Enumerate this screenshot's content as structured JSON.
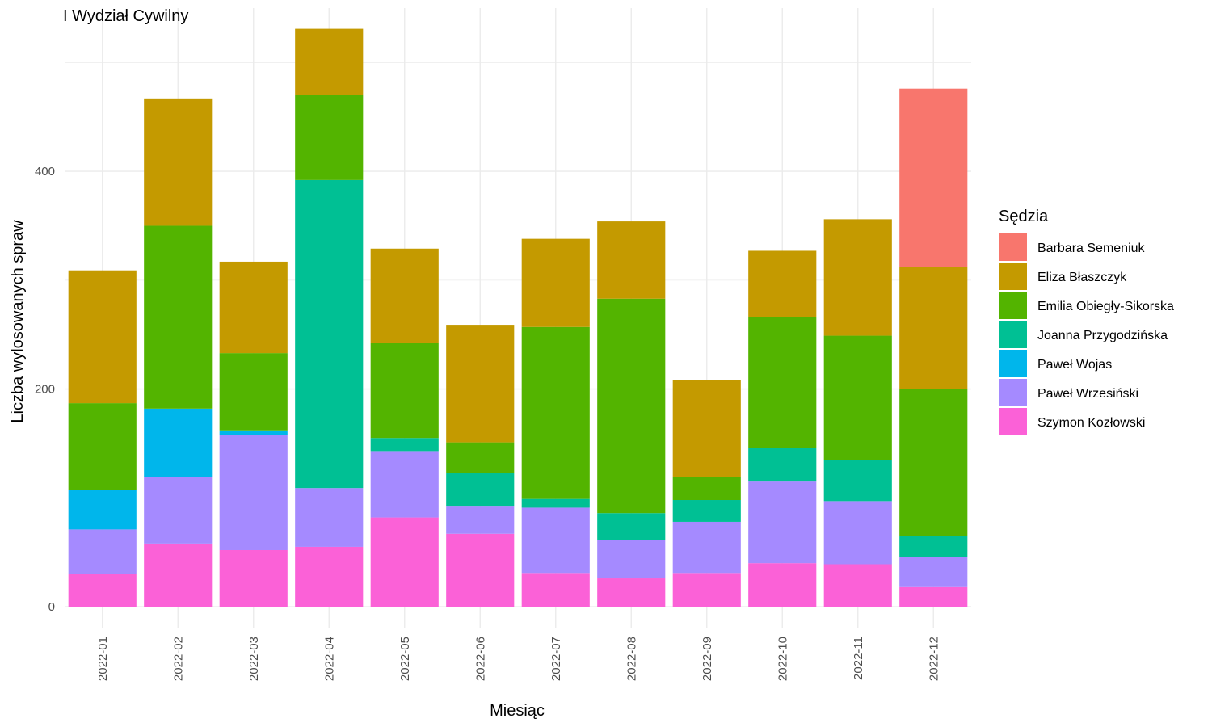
{
  "chart_data": {
    "type": "bar",
    "stacked": true,
    "title": "I Wydział Cywilny",
    "xlabel": "Miesiąc",
    "ylabel": "Liczba wylosowanych spraw",
    "ylim": [
      -20,
      550
    ],
    "yticks": [
      0,
      200,
      400
    ],
    "grid": true,
    "legend_title": "Sędzia",
    "legend_position": "right",
    "categories": [
      "2022-01",
      "2022-02",
      "2022-03",
      "2022-04",
      "2022-05",
      "2022-06",
      "2022-07",
      "2022-08",
      "2022-09",
      "2022-10",
      "2022-11",
      "2022-12"
    ],
    "series": [
      {
        "name": "Szymon Kozłowski",
        "color": "#FB61D7",
        "values": [
          30,
          58,
          52,
          55,
          82,
          67,
          31,
          26,
          31,
          40,
          39,
          18
        ]
      },
      {
        "name": "Paweł Wrzesiński",
        "color": "#A58AFF",
        "values": [
          41,
          61,
          106,
          54,
          61,
          25,
          60,
          35,
          47,
          75,
          58,
          28
        ]
      },
      {
        "name": "Paweł Wojas",
        "color": "#00B6EB",
        "values": [
          36,
          63,
          4,
          0,
          0,
          0,
          0,
          0,
          0,
          0,
          0,
          0
        ]
      },
      {
        "name": "Joanna Przygodzińska",
        "color": "#00C094",
        "values": [
          0,
          0,
          0,
          283,
          12,
          31,
          8,
          25,
          20,
          31,
          38,
          19
        ]
      },
      {
        "name": "Emilia Obiegły-Sikorska",
        "color": "#53B400",
        "values": [
          80,
          168,
          71,
          78,
          87,
          28,
          158,
          197,
          21,
          120,
          114,
          135
        ]
      },
      {
        "name": "Eliza Błaszczyk",
        "color": "#C49A00",
        "values": [
          122,
          117,
          84,
          61,
          87,
          108,
          81,
          71,
          89,
          61,
          107,
          112
        ]
      },
      {
        "name": "Barbara Semeniuk",
        "color": "#F8766D",
        "values": [
          0,
          0,
          0,
          0,
          0,
          0,
          0,
          0,
          0,
          0,
          0,
          164
        ]
      }
    ],
    "legend_order": [
      "Barbara Semeniuk",
      "Eliza Błaszczyk",
      "Emilia Obiegły-Sikorska",
      "Joanna Przygodzińska",
      "Paweł Wojas",
      "Paweł Wrzesiński",
      "Szymon Kozłowski"
    ]
  }
}
